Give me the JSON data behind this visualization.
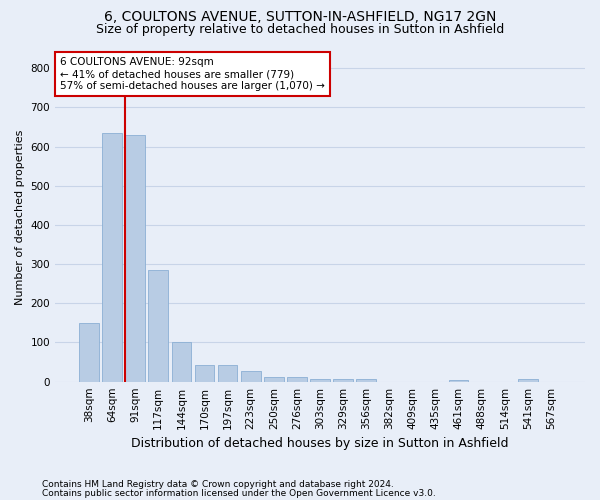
{
  "title": "6, COULTONS AVENUE, SUTTON-IN-ASHFIELD, NG17 2GN",
  "subtitle": "Size of property relative to detached houses in Sutton in Ashfield",
  "xlabel": "Distribution of detached houses by size in Sutton in Ashfield",
  "ylabel": "Number of detached properties",
  "footnote1": "Contains HM Land Registry data © Crown copyright and database right 2024.",
  "footnote2": "Contains public sector information licensed under the Open Government Licence v3.0.",
  "categories": [
    "38sqm",
    "64sqm",
    "91sqm",
    "117sqm",
    "144sqm",
    "170sqm",
    "197sqm",
    "223sqm",
    "250sqm",
    "276sqm",
    "303sqm",
    "329sqm",
    "356sqm",
    "382sqm",
    "409sqm",
    "435sqm",
    "461sqm",
    "488sqm",
    "514sqm",
    "541sqm",
    "567sqm"
  ],
  "values": [
    150,
    635,
    630,
    285,
    102,
    43,
    43,
    27,
    12,
    12,
    7,
    7,
    8,
    0,
    0,
    0,
    5,
    0,
    0,
    7,
    0
  ],
  "bar_color": "#b8cce4",
  "bar_edge_color": "#8bafd4",
  "marker_line_color": "#cc0000",
  "annotation_line1": "6 COULTONS AVENUE: 92sqm",
  "annotation_line2": "← 41% of detached houses are smaller (779)",
  "annotation_line3": "57% of semi-detached houses are larger (1,070) →",
  "annotation_box_facecolor": "#ffffff",
  "annotation_box_edgecolor": "#cc0000",
  "ylim": [
    0,
    840
  ],
  "yticks": [
    0,
    100,
    200,
    300,
    400,
    500,
    600,
    700,
    800
  ],
  "grid_color": "#c8d4e8",
  "bg_color": "#e8eef8",
  "title_fontsize": 10,
  "subtitle_fontsize": 9,
  "xlabel_fontsize": 9,
  "ylabel_fontsize": 8,
  "tick_fontsize": 7.5,
  "annotation_fontsize": 7.5,
  "footnote_fontsize": 6.5
}
